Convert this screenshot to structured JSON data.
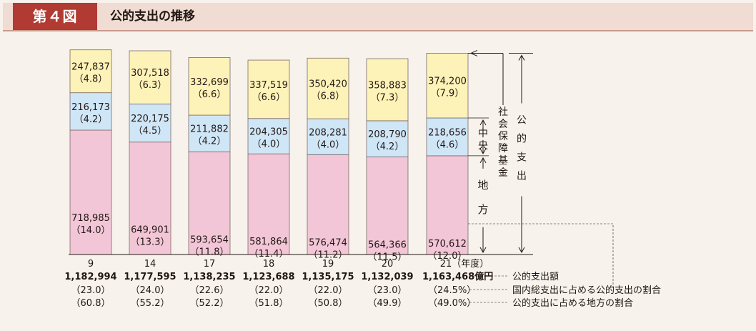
{
  "header": {
    "figure_label": "第４図",
    "title": "公的支出の推移"
  },
  "colors": {
    "local": "#f2c6d6",
    "central": "#cfe6f7",
    "social_security": "#fdf2b7"
  },
  "chart_data": {
    "type": "bar",
    "stacked": true,
    "categories": [
      "9",
      "14",
      "17",
      "18",
      "19",
      "20",
      "21"
    ],
    "category_suffix": "（年度）",
    "series": [
      {
        "name": "地方",
        "values": [
          718985,
          649901,
          593654,
          581864,
          576474,
          564366,
          570612
        ],
        "shares": [
          "（14.0）",
          "（13.3）",
          "（11.8）",
          "（11.4）",
          "（11.2）",
          "（11.5）",
          "（12.0）"
        ]
      },
      {
        "name": "中央",
        "values": [
          216173,
          220175,
          211882,
          204305,
          208281,
          208790,
          218656
        ],
        "shares": [
          "（4.2）",
          "（4.5）",
          "（4.2）",
          "（4.0）",
          "（4.0）",
          "（4.2）",
          "（4.6）"
        ]
      },
      {
        "name": "社会保障基金",
        "values": [
          247837,
          307518,
          332699,
          337519,
          350420,
          358883,
          374200
        ],
        "shares": [
          "（4.8）",
          "（6.3）",
          "（6.6）",
          "（6.6）",
          "（6.8）",
          "（7.3）",
          "（7.9）"
        ]
      }
    ],
    "totals": [
      "1,182,994",
      "1,177,595",
      "1,138,235",
      "1,123,688",
      "1,135,175",
      "1,132,039",
      "1,163,468"
    ],
    "total_unit": "億円",
    "share_of_gdp": [
      "（23.0）",
      "（24.0）",
      "（22.6）",
      "（22.0）",
      "（22.0）",
      "（23.0）",
      "（24.5%）"
    ],
    "local_share": [
      "（60.8）",
      "（55.2）",
      "（52.2）",
      "（51.8）",
      "（50.8）",
      "（49.9）",
      "（49.0%）"
    ],
    "annotations": {
      "total_label": "公的支出",
      "legend_totals": "公的支出額",
      "legend_gdp": "国内総支出に占める公的支出の割合",
      "legend_local": "公的支出に占める地方の割合"
    }
  }
}
